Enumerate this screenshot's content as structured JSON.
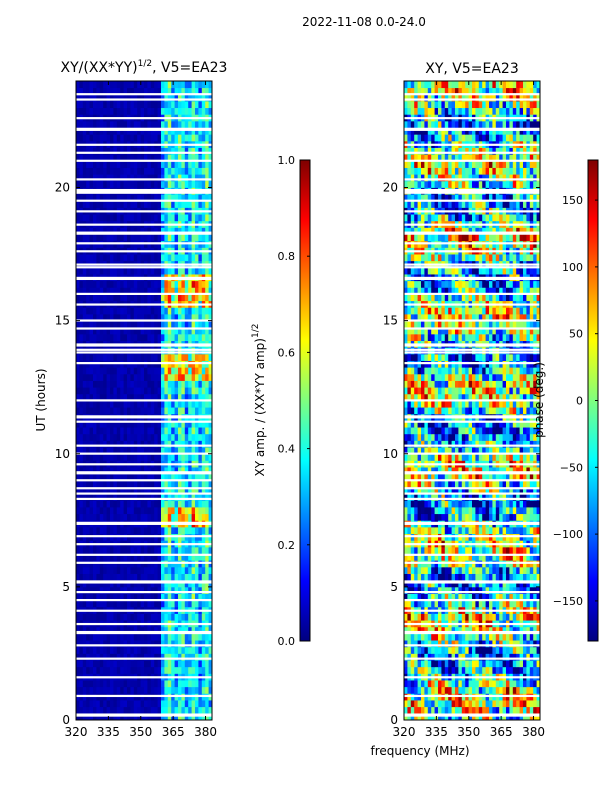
{
  "figure": {
    "suptitle": "2022-11-08 0.0-24.0",
    "xlabel_shared": "frequency (MHz)"
  },
  "colors": {
    "jet": [
      "#00007f",
      "#0000ff",
      "#007fff",
      "#00ffff",
      "#7fff7f",
      "#ffff00",
      "#ff7f00",
      "#ff0000",
      "#7f0000"
    ],
    "flag_rows": "#ffffff"
  },
  "chart_data": [
    {
      "type": "heatmap",
      "title_main": "XY/(XX*YY)",
      "title_sup": "1/2",
      "title_rest": ", V5=EA23",
      "xlabel": "",
      "ylabel": "UT (hours)",
      "xlim": [
        320,
        383
      ],
      "ylim": [
        0,
        24
      ],
      "xticks": [
        320,
        335,
        350,
        365,
        380
      ],
      "yticks": [
        0,
        5,
        10,
        15,
        20
      ],
      "low_band_range_mhz": [
        320,
        360
      ],
      "active_band_range_mhz": [
        360,
        383
      ],
      "colorbar": {
        "label_main": "XY amp. / (XX*YY amp)",
        "label_sup": "1/2",
        "range": [
          0.0,
          1.0
        ],
        "ticks": [
          "0.0",
          "0.2",
          "0.4",
          "0.6",
          "0.8",
          "1.0"
        ]
      },
      "high_amplitude_hours": [
        [
          7.2,
          8.0
        ],
        [
          12.8,
          13.8
        ],
        [
          15.5,
          16.8
        ]
      ],
      "flagged_hours": [
        0.2,
        0.9,
        1.6,
        2.3,
        2.8,
        3.3,
        3.6,
        4.1,
        4.5,
        4.8,
        5.2,
        5.9,
        6.2,
        6.6,
        6.9,
        7.4,
        8.3,
        8.5,
        8.7,
        9.0,
        9.3,
        9.6,
        10.0,
        10.3,
        11.2,
        11.4,
        12.0,
        13.4,
        13.8,
        13.9,
        14.1,
        14.7,
        15.0,
        15.6,
        16.0,
        16.6,
        17.0,
        17.1,
        17.6,
        17.9,
        18.3,
        18.6,
        19.1,
        19.5,
        19.8,
        19.9,
        20.3,
        21.0,
        21.3,
        21.6,
        22.2,
        22.6,
        23.3,
        23.5
      ]
    },
    {
      "type": "heatmap",
      "title": "XY, V5=EA23",
      "xlabel": "frequency (MHz)",
      "ylabel": "",
      "xlim": [
        320,
        383
      ],
      "ylim": [
        0,
        24
      ],
      "xticks": [
        320,
        335,
        350,
        365,
        380
      ],
      "yticks": [
        0,
        5,
        10,
        15,
        20
      ],
      "colorbar": {
        "label": "phase (deg.)",
        "range": [
          -180,
          180
        ],
        "ticks": [
          "−150",
          "−100",
          "−50",
          "0",
          "50",
          "100",
          "150"
        ]
      },
      "flagged_hours": [
        0.2,
        0.9,
        1.6,
        2.3,
        2.8,
        3.3,
        3.6,
        4.1,
        4.5,
        4.8,
        5.2,
        5.9,
        6.2,
        6.6,
        6.9,
        7.4,
        8.3,
        8.5,
        8.7,
        9.0,
        9.3,
        9.6,
        10.0,
        10.3,
        11.2,
        11.4,
        12.0,
        13.4,
        13.8,
        13.9,
        14.1,
        14.7,
        15.0,
        15.6,
        16.0,
        16.6,
        17.0,
        17.1,
        17.6,
        17.9,
        18.3,
        18.6,
        19.1,
        19.5,
        19.8,
        19.9,
        20.3,
        21.0,
        21.3,
        21.6,
        22.2,
        22.6,
        23.3,
        23.5
      ]
    }
  ]
}
